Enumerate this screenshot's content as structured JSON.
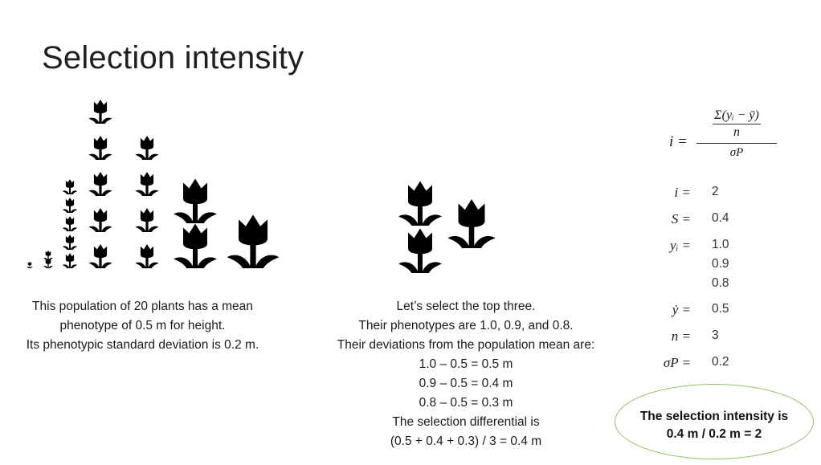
{
  "slide": {
    "title": "Selection intensity"
  },
  "left_text": [
    "This population of 20 plants has a mean",
    "phenotype of 0.5 m for height.",
    "Its phenotypic standard deviation is 0.2 m."
  ],
  "middle_text": [
    "Let’s select the top three.",
    "Their phenotypes are 1.0, 0.9, and 0.8.",
    "Their deviations from the population mean are:",
    "1.0 – 0.5 = 0.5 m",
    "0.9 – 0.5 = 0.4 m",
    "0.8 – 0.5 = 0.3 m",
    "The selection differential is",
    "(0.5 + 0.4 + 0.3) / 3 = 0.4 m"
  ],
  "formula": {
    "lhs": "i =",
    "numerator": "Σ(yᵢ − ȳ)",
    "inner_denominator": "n",
    "denominator": "σP"
  },
  "variables": [
    {
      "symbol": "i =",
      "values": [
        "2"
      ]
    },
    {
      "symbol": "S =",
      "values": [
        "0.4"
      ]
    },
    {
      "symbol": "yᵢ =",
      "values": [
        "1.0",
        "0.9",
        "0.8"
      ]
    },
    {
      "symbol": "ẏ =",
      "values": [
        "0.5"
      ]
    },
    {
      "symbol": "n =",
      "values": [
        "3"
      ]
    },
    {
      "symbol": "σP =",
      "values": [
        "0.2"
      ]
    }
  ],
  "result": {
    "line1": "The selection intensity is",
    "line2": "0.4 m / 0.2 m = 2"
  },
  "colors": {
    "plant": "#000000",
    "result_border": "#8fbf6a"
  },
  "icons": {
    "plant": "tulip-icon"
  }
}
